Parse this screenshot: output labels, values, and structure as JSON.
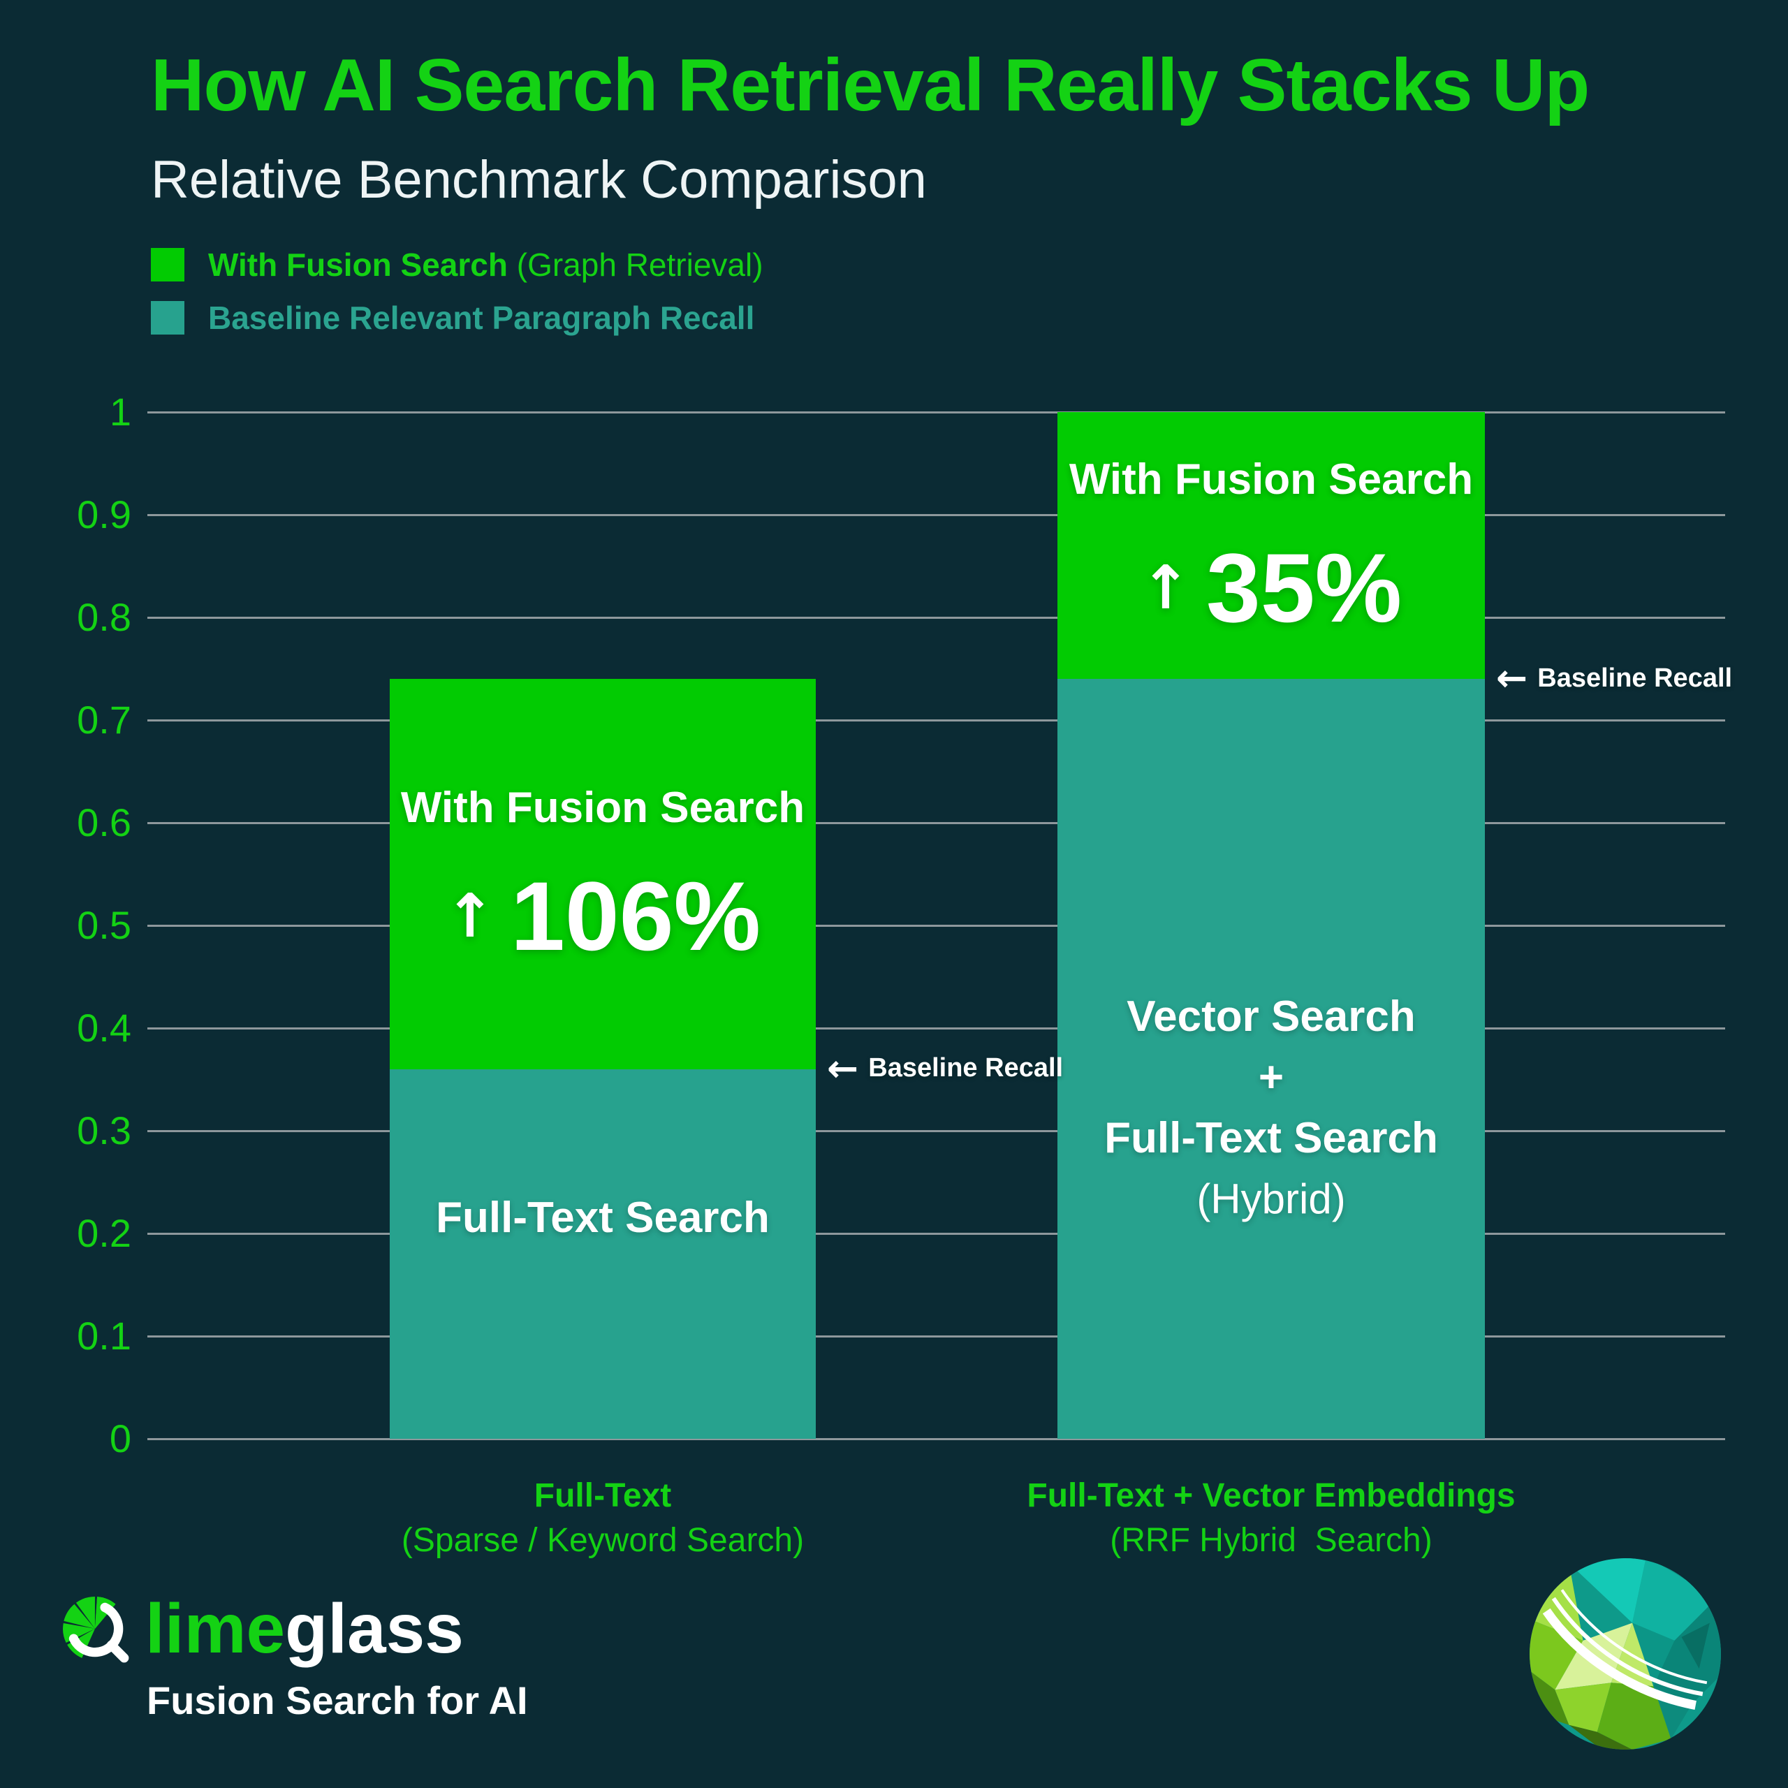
{
  "header": {
    "title": "How AI Search Retrieval Really Stacks Up",
    "subtitle": "Relative Benchmark Comparison"
  },
  "legend": {
    "items": [
      {
        "label": "With Fusion Search",
        "suffix": " (Graph Retrieval)",
        "color": "#02cb02"
      },
      {
        "label": "Baseline Relevant Paragraph Recall",
        "suffix": "",
        "color": "#27a28e"
      }
    ]
  },
  "chart_data": {
    "type": "bar",
    "stacked": true,
    "title": "How AI Search Retrieval Really Stacks Up — Relative Benchmark Comparison",
    "categories": [
      "Full-Text (Sparse / Keyword Search)",
      "Full-Text + Vector Embeddings (RRF Hybrid Search)"
    ],
    "series": [
      {
        "name": "Baseline Relevant Paragraph Recall",
        "values": [
          0.36,
          0.74
        ],
        "color": "#27a28e"
      },
      {
        "name": "With Fusion Search (Graph Retrieval)",
        "values": [
          0.38,
          0.26
        ],
        "color": "#02cb02"
      }
    ],
    "totals": [
      0.74,
      1.0
    ],
    "uplift_percent": [
      106,
      35
    ],
    "xlabel": "",
    "ylabel": "",
    "ylim": [
      0,
      1
    ],
    "grid": true,
    "legend_position": "top-left",
    "yticks": [
      {
        "v": 1.0,
        "label": "1"
      },
      {
        "v": 0.9,
        "label": "0.9"
      },
      {
        "v": 0.8,
        "label": "0.8"
      },
      {
        "v": 0.7,
        "label": "0.7"
      },
      {
        "v": 0.6,
        "label": "0.6"
      },
      {
        "v": 0.5,
        "label": "0.5"
      },
      {
        "v": 0.4,
        "label": "0.4"
      },
      {
        "v": 0.3,
        "label": "0.3"
      },
      {
        "v": 0.2,
        "label": "0.2"
      },
      {
        "v": 0.1,
        "label": "0.1"
      },
      {
        "v": 0.0,
        "label": "0"
      }
    ],
    "bars": [
      {
        "baseline": 0.36,
        "total": 0.74,
        "uplift": "106%",
        "green_label": "With Fusion Search",
        "teal_lines": [
          "Full-Text Search"
        ],
        "baseline_annotation": "Baseline Recall",
        "category_line1": "Full-Text",
        "category_line2": "(Sparse / Keyword Search)"
      },
      {
        "baseline": 0.74,
        "total": 1.0,
        "uplift": "35%",
        "green_label": "With Fusion Search",
        "teal_lines": [
          "Vector Search",
          "+",
          "Full-Text Search",
          "(Hybrid)"
        ],
        "baseline_annotation": "Baseline Recall",
        "category_line1": "Full-Text + Vector Embeddings",
        "category_line2": "(RRF Hybrid  Search)"
      }
    ]
  },
  "annotations": {
    "left_arrow": "←",
    "up_arrow": "↑"
  },
  "footer": {
    "logo_lime": "lime",
    "logo_glass": "glass",
    "tagline": "Fusion Search for AI"
  },
  "colors": {
    "background": "#0b2b34",
    "bar_green": "#02cb02",
    "text_green": "#14d214",
    "bar_teal": "#27a28e",
    "teal_text": "#2ba490",
    "gridline": "#8e989c",
    "white": "#ffffff"
  }
}
